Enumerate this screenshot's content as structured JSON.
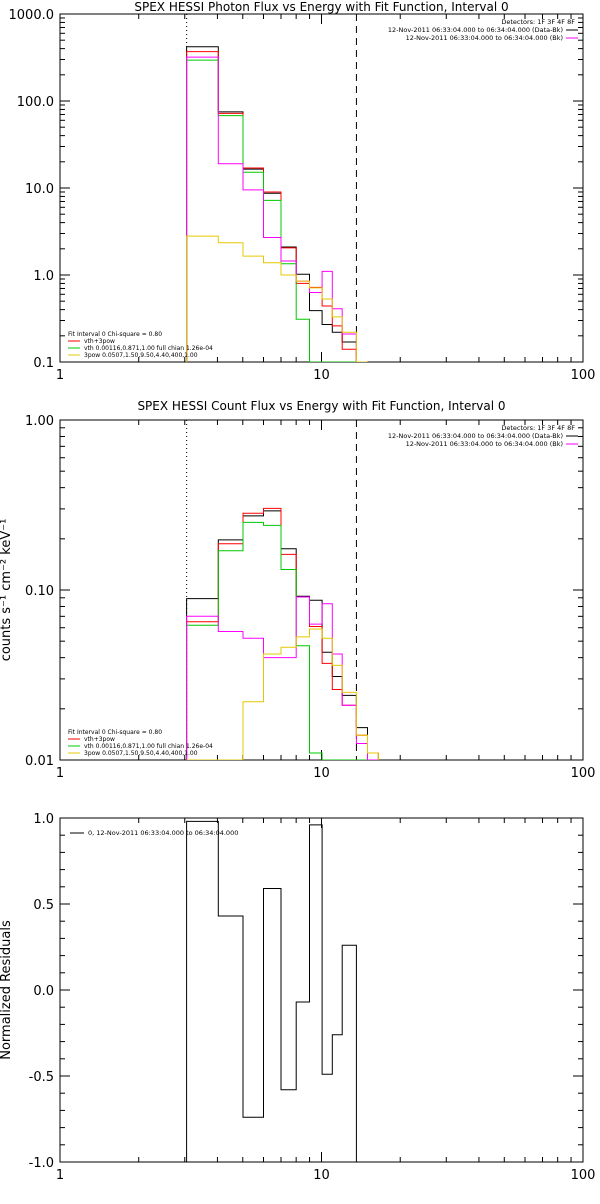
{
  "chart_data": [
    {
      "type": "line",
      "title": "SPEX HESSI Photon Flux vs Energy with Fit Function, Interval 0",
      "xscale": "log",
      "yscale": "log",
      "xlim": [
        1,
        100
      ],
      "ylim": [
        0.1,
        1000
      ],
      "x_ticks": [
        "1",
        "10",
        "100"
      ],
      "y_ticks": [
        "0.1",
        "1.0",
        "10.0",
        "100.0",
        "1000.0"
      ],
      "ylabel": "",
      "xlabel": "",
      "header_lines": [
        "Detectors: 1F 3F 4F 8F",
        "12-Nov-2011 06:33:04.000 to 06:34:04.000 (Data-Bk)",
        "12-Nov-2011 06:33:04.000 to 06:34:04.000 (Bk)"
      ],
      "header_colors": [
        "#000000",
        "#000000",
        "#ff00ff"
      ],
      "header_legend_lines": [
        null,
        "#000000",
        "#ff00ff"
      ],
      "fit_legend": [
        {
          "text": "Fit Interval  0    Chi-square = 0.80",
          "color": null
        },
        {
          "text": "vth+3pow",
          "color": "#ff0000"
        },
        {
          "text": "vth 0.00116,0.871,1.00   full chian 1.26e-04",
          "color": "#00c800"
        },
        {
          "text": "3pow 0.0507,1.50,9.50,4.40,400,1.00",
          "color": "#e6c800"
        }
      ],
      "vlines": [
        {
          "x": 3.05,
          "style": "dotted",
          "color": "#000000"
        },
        {
          "x": 13.6,
          "style": "dashed",
          "color": "#000000"
        }
      ],
      "bin_edges": [
        3.05,
        4.03,
        5.01,
        6.0,
        7.0,
        8.0,
        9.0,
        10.05,
        11.0,
        12.0,
        13.6,
        15.0
      ],
      "series": [
        {
          "color": "#000000",
          "values": [
            420,
            75,
            16.5,
            8.7,
            2.1,
            1.02,
            0.39,
            0.27,
            0.22,
            0.17,
            0.1
          ]
        },
        {
          "color": "#ff0000",
          "values": [
            370,
            72,
            17,
            9,
            2.05,
            0.8,
            0.72,
            0.44,
            0.26,
            0.14,
            0.1
          ]
        },
        {
          "color": "#00c800",
          "values": [
            295,
            68,
            15.2,
            7.2,
            1.35,
            0.31,
            0.1,
            0.1,
            0.1,
            0.1,
            0.1
          ]
        },
        {
          "color": "#ff00ff",
          "values": [
            320,
            19,
            9.5,
            2.7,
            1.45,
            0.85,
            0.63,
            1.1,
            0.41,
            0.21,
            0.1
          ]
        },
        {
          "color": "#e6c800",
          "values": [
            2.8,
            2.35,
            1.65,
            1.38,
            1.0,
            0.85,
            0.71,
            0.53,
            0.33,
            0.22,
            0.1
          ]
        }
      ]
    },
    {
      "type": "line",
      "title": "SPEX HESSI Count Flux vs Energy with Fit Function, Interval 0",
      "xscale": "log",
      "yscale": "log",
      "xlim": [
        1,
        100
      ],
      "ylim": [
        0.01,
        1
      ],
      "x_ticks": [
        "1",
        "10",
        "100"
      ],
      "y_ticks": [
        "0.01",
        "0.10",
        "1.00"
      ],
      "ylabel": "counts s⁻¹ cm⁻² keV⁻¹",
      "xlabel": "",
      "header_lines": [
        "Detectors: 1F 3F 4F 8F",
        "12-Nov-2011 06:33:04.000 to 06:34:04.000 (Data-Bk)",
        "12-Nov-2011 06:33:04.000 to 06:34:04.000 (Bk)"
      ],
      "header_colors": [
        "#000000",
        "#000000",
        "#ff00ff"
      ],
      "header_legend_lines": [
        null,
        "#000000",
        "#ff00ff"
      ],
      "fit_legend": [
        {
          "text": "Fit Interval  0    Chi-square = 0.80",
          "color": null
        },
        {
          "text": "vth+3pow",
          "color": "#ff0000"
        },
        {
          "text": "vth 0.00116,0.871,1.00   full chian 1.26e-04",
          "color": "#00c800"
        },
        {
          "text": "3pow 0.0507,1.50,9.50,4.40,400,1.00",
          "color": "#e6c800"
        }
      ],
      "vlines": [
        {
          "x": 3.05,
          "style": "dotted",
          "color": "#000000"
        },
        {
          "x": 13.6,
          "style": "dashed",
          "color": "#000000"
        }
      ],
      "bin_edges": [
        3.05,
        4.03,
        5.01,
        6.0,
        7.0,
        8.0,
        9.0,
        10.05,
        11.0,
        12.0,
        13.6,
        15.0,
        16.5
      ],
      "series": [
        {
          "color": "#000000",
          "values": [
            0.089,
            0.197,
            0.273,
            0.292,
            0.175,
            0.092,
            0.087,
            0.043,
            0.031,
            0.024,
            0.0155,
            0.011
          ]
        },
        {
          "color": "#ff0000",
          "values": [
            0.065,
            0.187,
            0.283,
            0.302,
            0.162,
            0.091,
            0.061,
            0.037,
            0.026,
            0.021,
            0.014,
            0.011
          ]
        },
        {
          "color": "#00c800",
          "values": [
            0.062,
            0.17,
            0.25,
            0.24,
            0.132,
            0.047,
            0.011,
            0.01,
            0.01,
            0.01,
            0.01,
            0.01
          ]
        },
        {
          "color": "#ff00ff",
          "values": [
            0.07,
            0.057,
            0.052,
            0.04,
            0.04,
            0.091,
            0.063,
            0.083,
            0.042,
            0.021,
            0.0125,
            0.01
          ]
        },
        {
          "color": "#e6c800",
          "values": [
            0.01,
            0.01,
            0.022,
            0.042,
            0.046,
            0.053,
            0.059,
            0.052,
            0.036,
            0.025,
            0.014,
            0.011
          ]
        }
      ]
    },
    {
      "type": "line",
      "title": "",
      "xscale": "log",
      "yscale": "linear",
      "xlim": [
        1,
        100
      ],
      "ylim": [
        -1.0,
        1.0
      ],
      "x_ticks": [
        "1",
        "10",
        "100"
      ],
      "y_ticks": [
        "-1.0",
        "-0.5",
        "0.0",
        "0.5",
        "1.0"
      ],
      "ylabel": "Normalized Residuals",
      "xlabel": "",
      "legend": "0, 12-Nov-2011 06:33:04.000 to 06:34:04.000",
      "bin_edges": [
        3.05,
        4.03,
        5.01,
        6.0,
        7.0,
        8.0,
        9.0,
        10.05,
        11.0,
        12.0,
        13.6
      ],
      "series": [
        {
          "color": "#000000",
          "values": [
            0.98,
            0.43,
            -0.74,
            0.59,
            -0.58,
            -0.07,
            0.96,
            -0.49,
            -0.26,
            0.26
          ]
        }
      ]
    }
  ]
}
